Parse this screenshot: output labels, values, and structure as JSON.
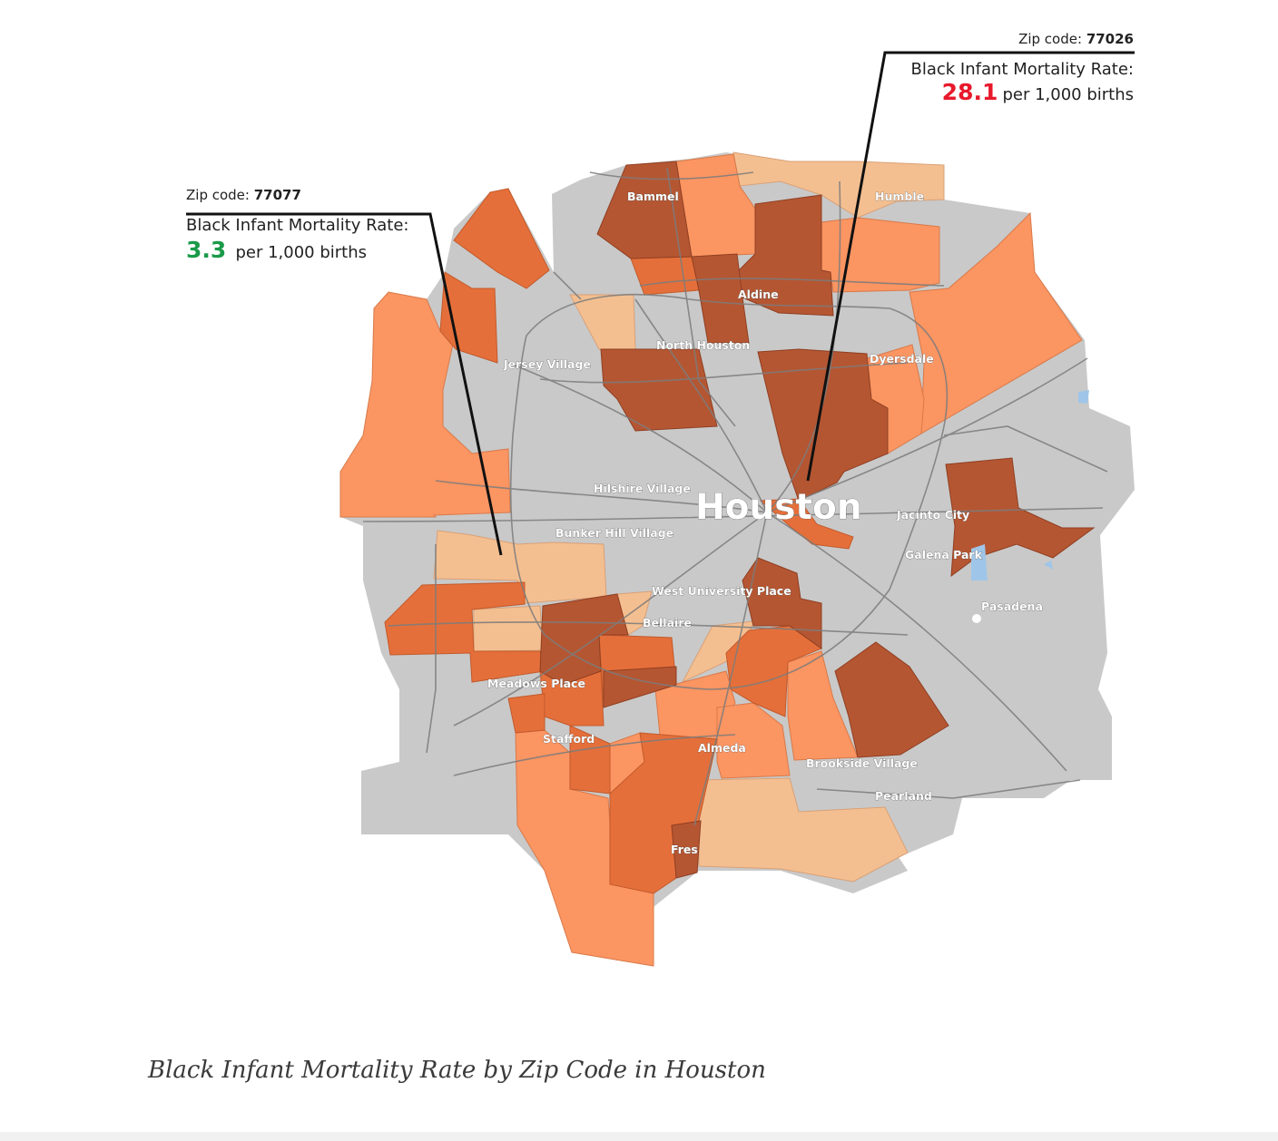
{
  "callouts": {
    "left": {
      "zip_label": "Zip code:",
      "zip": "77077",
      "rate_label": "Black Infant Mortality Rate:",
      "rate": "3.3",
      "rate_unit": "per 1,000 births",
      "rate_color": "#1a9a4a"
    },
    "right": {
      "zip_label": "Zip code:",
      "zip": "77026",
      "rate_label": "Black Infant Mortality Rate:",
      "rate": "28.1",
      "rate_unit": "per 1,000 births",
      "rate_color": "#e8192c"
    }
  },
  "labels": {
    "houston": "Houston",
    "bammel": "Bammel",
    "humble": "Humble",
    "aldine": "Aldine",
    "north_houston": "North Houston",
    "jersey_village": "Jersey Village",
    "dyersdale": "Dyersdale",
    "hilshire_village": "Hilshire Village",
    "jacinto_city": "Jacinto City",
    "bunker_hill_village": "Bunker Hill Village",
    "galena_park": "Galena Park",
    "west_university_place": "West University Place",
    "bellaire": "Bellaire",
    "pasadena": "Pasadena",
    "meadows_place": "Meadows Place",
    "stafford": "Stafford",
    "almeda": "Almeda",
    "brookside_village": "Brookside Village",
    "pearland": "Pearland",
    "fresno": "Fres"
  },
  "caption": "Black Infant Mortality Rate by Zip Code in Houston",
  "colors": {
    "base": "#c9c9c9",
    "light": "#f4bf90",
    "mid": "#fb9562",
    "dark_mid": "#e56f3a",
    "dark": "#b55632",
    "water": "#9fc6e8",
    "roads": "#7c7c7c"
  }
}
